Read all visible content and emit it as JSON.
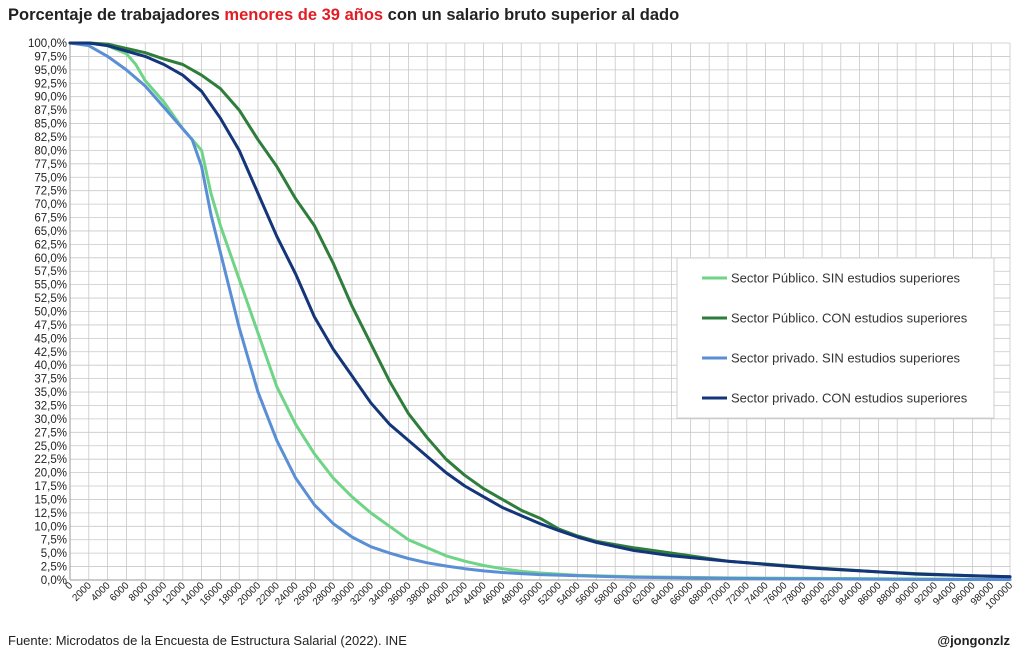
{
  "title": {
    "prefix": "Porcentaje de trabajadores ",
    "highlight": "menores de 39 años",
    "suffix": " con un salario bruto superior al dado"
  },
  "source": "Fuente: Microdatos de la Encuesta de Estructura Salarial (2022). INE",
  "handle": "@jongonzlz",
  "colors": {
    "highlight": "#e31b23",
    "grid": "#c8c8c8",
    "axis": "#9a9a9a"
  },
  "chart_data": {
    "type": "line",
    "title": "Porcentaje de trabajadores menores de 39 años con un salario bruto superior al dado",
    "xlabel": "",
    "ylabel": "",
    "xlim": [
      0,
      100000
    ],
    "ylim": [
      0,
      100
    ],
    "x_step": 2000,
    "y_step": 2.5,
    "grid": true,
    "legend_position": "right",
    "series": [
      {
        "name": "Sector Público. SIN estudios superiores",
        "color": "#6fd486",
        "x": [
          0,
          2000,
          4000,
          6000,
          7000,
          8000,
          10000,
          12000,
          14000,
          15000,
          16000,
          18000,
          20000,
          22000,
          24000,
          26000,
          28000,
          30000,
          32000,
          34000,
          36000,
          38000,
          40000,
          42000,
          44000,
          46000,
          48000,
          50000,
          54000,
          60000,
          70000,
          80000,
          90000,
          100000
        ],
        "values": [
          100,
          100,
          99.5,
          98,
          96,
          93,
          89,
          84,
          80,
          72,
          66,
          56,
          46,
          36,
          29,
          23.5,
          19,
          15.5,
          12.5,
          10,
          7.5,
          6,
          4.5,
          3.5,
          2.7,
          2.1,
          1.6,
          1.3,
          0.9,
          0.6,
          0.4,
          0.3,
          0.2,
          0.1
        ]
      },
      {
        "name": "Sector Público. CON estudios superiores",
        "color": "#2e7d3b",
        "x": [
          0,
          2000,
          4000,
          6000,
          8000,
          10000,
          12000,
          14000,
          16000,
          18000,
          20000,
          22000,
          24000,
          26000,
          28000,
          30000,
          32000,
          34000,
          36000,
          38000,
          40000,
          42000,
          44000,
          46000,
          48000,
          50000,
          52000,
          54000,
          56000,
          60000,
          64000,
          70000,
          76000,
          80000,
          86000,
          90000,
          96000,
          100000
        ],
        "values": [
          100,
          100,
          99.8,
          99,
          98.2,
          97,
          96,
          94,
          91.5,
          87.5,
          82,
          77,
          71,
          66,
          59,
          51,
          44,
          37,
          31,
          26.5,
          22.5,
          19.5,
          17,
          15,
          13,
          11.5,
          9.5,
          8.2,
          7.2,
          6,
          5,
          3.5,
          2.7,
          2.2,
          1.5,
          1.2,
          0.8,
          0.6
        ]
      },
      {
        "name": "Sector privado. SIN estudios superiores",
        "color": "#5a8fd6",
        "x": [
          0,
          2000,
          4000,
          6000,
          8000,
          10000,
          12000,
          13000,
          14000,
          15000,
          16000,
          18000,
          20000,
          22000,
          24000,
          26000,
          28000,
          30000,
          32000,
          34000,
          36000,
          38000,
          40000,
          42000,
          44000,
          46000,
          48000,
          50000,
          56000,
          60000,
          70000,
          80000,
          90000,
          100000
        ],
        "values": [
          100,
          99.5,
          97.5,
          95,
          92,
          88,
          84,
          82,
          77,
          68,
          61,
          47,
          35,
          26,
          19,
          14,
          10.5,
          8,
          6.2,
          5,
          4,
          3.2,
          2.6,
          2.1,
          1.7,
          1.4,
          1.2,
          1,
          0.7,
          0.5,
          0.3,
          0.2,
          0.1,
          0.1
        ]
      },
      {
        "name": "Sector privado. CON estudios superiores",
        "color": "#14357a",
        "x": [
          0,
          2000,
          4000,
          6000,
          8000,
          10000,
          12000,
          14000,
          16000,
          18000,
          20000,
          22000,
          24000,
          26000,
          28000,
          30000,
          32000,
          34000,
          36000,
          38000,
          40000,
          42000,
          44000,
          46000,
          48000,
          50000,
          52000,
          54000,
          56000,
          60000,
          64000,
          70000,
          76000,
          80000,
          86000,
          90000,
          96000,
          100000
        ],
        "values": [
          100,
          100,
          99.5,
          98.5,
          97.5,
          96,
          94,
          91,
          86,
          80,
          72,
          64,
          57,
          49,
          43,
          38,
          33,
          29,
          26,
          23,
          20,
          17.5,
          15.5,
          13.5,
          12,
          10.5,
          9.2,
          8,
          7,
          5.5,
          4.5,
          3.5,
          2.6,
          2.1,
          1.5,
          1.1,
          0.8,
          0.6
        ]
      }
    ]
  }
}
